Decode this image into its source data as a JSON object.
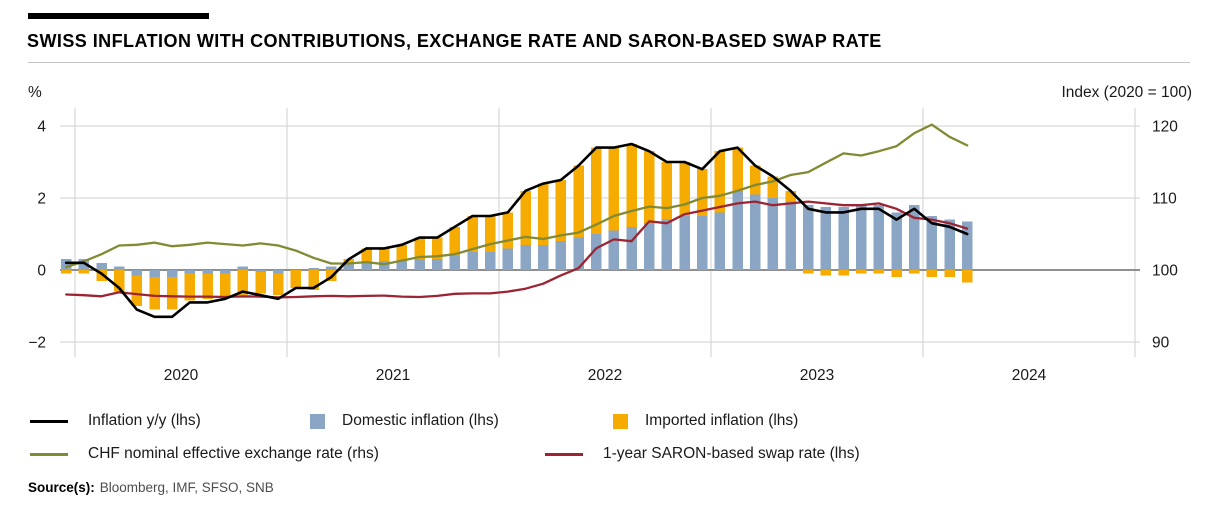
{
  "header": {
    "title": "SWISS INFLATION WITH CONTRIBUTIONS, EXCHANGE RATE AND SARON-BASED SWAP RATE"
  },
  "colors": {
    "domestic_bar": "#8BA6C4",
    "imported_bar": "#F5AB00",
    "inflation_line": "#000000",
    "neer_line": "#828A33",
    "saron_line": "#9C2433",
    "grid": "#cfcfcf",
    "zero_line": "#8f8f8f",
    "text": "#1a1a1a"
  },
  "legend": {
    "row1": [
      {
        "swatch": "line",
        "color": "#000000",
        "label": "Inflation y/y (lhs)"
      },
      {
        "swatch": "square",
        "color": "#8BA6C4",
        "label": "Domestic inflation (lhs)"
      },
      {
        "swatch": "square",
        "color": "#F5AB00",
        "label": "Imported inflation (lhs)"
      }
    ],
    "row2": [
      {
        "swatch": "line",
        "color": "#828A33",
        "label": "CHF nominal effective exchange rate (rhs)"
      },
      {
        "swatch": "line",
        "color": "#9C2433",
        "label": "1-year SARON-based swap rate (lhs)"
      }
    ]
  },
  "source": {
    "label": "Source(s):",
    "names": "Bloomberg, IMF, SFSO, SNB"
  },
  "chart_data": {
    "type": "bar",
    "subtype": "monthly stacked contribution bars with overlaid lines",
    "title": "Swiss inflation with contributions, exchange rate and SARON-based swap rate",
    "grid": true,
    "legend_position": "bottom",
    "left_axis": {
      "label": "%",
      "ticks": [
        4,
        2,
        0,
        -2
      ],
      "min": -2.5,
      "max": 4.5
    },
    "right_axis": {
      "label": "Index (2020 = 100)",
      "ticks": [
        120,
        110,
        100,
        90
      ],
      "min": 87.5,
      "max": 122.5,
      "mapping": "rhs = 100 + 5 * lhs"
    },
    "x_axis": {
      "year_labels": [
        "2020",
        "2021",
        "2022",
        "2023",
        "2024"
      ],
      "start": "2019-12",
      "end": "2024-03"
    },
    "x": [
      "2019-12",
      "2020-01",
      "2020-02",
      "2020-03",
      "2020-04",
      "2020-05",
      "2020-06",
      "2020-07",
      "2020-08",
      "2020-09",
      "2020-10",
      "2020-11",
      "2020-12",
      "2021-01",
      "2021-02",
      "2021-03",
      "2021-04",
      "2021-05",
      "2021-06",
      "2021-07",
      "2021-08",
      "2021-09",
      "2021-10",
      "2021-11",
      "2021-12",
      "2022-01",
      "2022-02",
      "2022-03",
      "2022-04",
      "2022-05",
      "2022-06",
      "2022-07",
      "2022-08",
      "2022-09",
      "2022-10",
      "2022-11",
      "2022-12",
      "2023-01",
      "2023-02",
      "2023-03",
      "2023-04",
      "2023-05",
      "2023-06",
      "2023-07",
      "2023-08",
      "2023-09",
      "2023-10",
      "2023-11",
      "2023-12",
      "2024-01",
      "2024-02",
      "2024-03"
    ],
    "bar_series": [
      {
        "name": "Domestic inflation (lhs)",
        "axis": "left",
        "color": "#8BA6C4",
        "values": [
          0.3,
          0.3,
          0.2,
          0.1,
          -0.15,
          -0.2,
          -0.2,
          -0.1,
          -0.1,
          -0.1,
          0.1,
          -0.05,
          -0.1,
          0.0,
          0.05,
          0.1,
          0.2,
          0.2,
          0.25,
          0.25,
          0.3,
          0.3,
          0.4,
          0.5,
          0.5,
          0.6,
          0.7,
          0.7,
          0.8,
          0.9,
          1.0,
          1.1,
          1.2,
          1.3,
          1.4,
          1.5,
          1.5,
          1.6,
          2.2,
          2.1,
          2.0,
          1.9,
          1.8,
          1.75,
          1.75,
          1.8,
          1.8,
          1.6,
          1.8,
          1.5,
          1.4,
          1.35
        ]
      },
      {
        "name": "Imported inflation (lhs)",
        "axis": "left",
        "color": "#F5AB00",
        "values": [
          -0.1,
          -0.1,
          -0.3,
          -0.6,
          -0.85,
          -0.9,
          -0.9,
          -0.75,
          -0.7,
          -0.65,
          -0.7,
          -0.6,
          -0.6,
          -0.5,
          -0.55,
          -0.3,
          0.1,
          0.4,
          0.35,
          0.45,
          0.6,
          0.6,
          0.8,
          1.0,
          1.0,
          1.0,
          1.5,
          1.7,
          1.7,
          2.0,
          2.4,
          2.3,
          2.3,
          2.0,
          1.6,
          1.5,
          1.3,
          1.7,
          1.2,
          0.8,
          0.6,
          0.3,
          -0.1,
          -0.15,
          -0.15,
          -0.1,
          -0.1,
          -0.2,
          -0.1,
          -0.2,
          -0.2,
          -0.35
        ]
      }
    ],
    "line_series": [
      {
        "name": "Inflation y/y (lhs)",
        "axis": "left",
        "color": "#000000",
        "values": [
          0.2,
          0.2,
          -0.1,
          -0.5,
          -1.1,
          -1.3,
          -1.3,
          -0.9,
          -0.9,
          -0.8,
          -0.6,
          -0.7,
          -0.8,
          -0.5,
          -0.5,
          -0.2,
          0.3,
          0.6,
          0.6,
          0.7,
          0.9,
          0.9,
          1.2,
          1.5,
          1.5,
          1.6,
          2.2,
          2.4,
          2.5,
          2.9,
          3.4,
          3.4,
          3.5,
          3.3,
          3.0,
          3.0,
          2.8,
          3.3,
          3.4,
          2.9,
          2.6,
          2.2,
          1.7,
          1.6,
          1.6,
          1.7,
          1.7,
          1.4,
          1.7,
          1.3,
          1.2,
          1.0
        ]
      },
      {
        "name": "CHF nominal effective exchange rate (rhs)",
        "axis": "right",
        "color": "#828A33",
        "values": [
          100.4,
          101.2,
          102.2,
          103.4,
          103.5,
          103.8,
          103.3,
          103.5,
          103.8,
          103.6,
          103.4,
          103.7,
          103.4,
          102.7,
          101.7,
          100.9,
          100.9,
          101.1,
          100.8,
          101.3,
          101.8,
          101.9,
          102.2,
          102.9,
          103.6,
          104.1,
          104.6,
          104.3,
          104.8,
          105.2,
          106.3,
          107.5,
          108.2,
          108.8,
          108.6,
          109.1,
          110.0,
          110.3,
          111.0,
          111.8,
          112.3,
          113.2,
          113.6,
          114.9,
          116.2,
          115.9,
          116.5,
          117.2,
          119.0,
          120.2,
          118.5,
          117.3
        ]
      },
      {
        "name": "1-year SARON-based swap rate (lhs)",
        "axis": "left",
        "color": "#9C2433",
        "values": [
          -0.68,
          -0.7,
          -0.73,
          -0.62,
          -0.67,
          -0.72,
          -0.73,
          -0.74,
          -0.74,
          -0.75,
          -0.73,
          -0.74,
          -0.76,
          -0.75,
          -0.73,
          -0.72,
          -0.73,
          -0.72,
          -0.71,
          -0.74,
          -0.75,
          -0.72,
          -0.66,
          -0.65,
          -0.65,
          -0.6,
          -0.52,
          -0.38,
          -0.15,
          0.05,
          0.6,
          0.85,
          0.8,
          1.35,
          1.3,
          1.55,
          1.65,
          1.75,
          1.85,
          1.9,
          1.8,
          1.85,
          1.9,
          1.85,
          1.8,
          1.8,
          1.85,
          1.7,
          1.45,
          1.4,
          1.3,
          1.15
        ]
      }
    ]
  }
}
